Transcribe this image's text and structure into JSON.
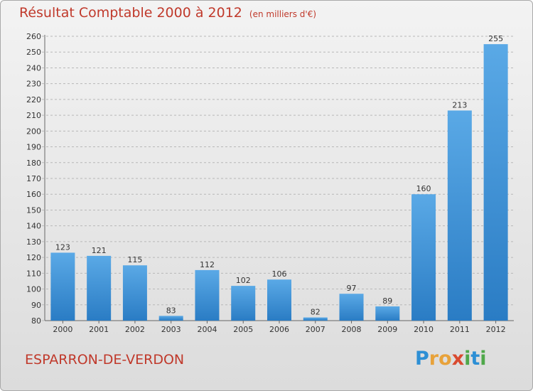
{
  "title": "Résultat Comptable 2000 à 2012",
  "subtitle": "(en milliers d'€)",
  "location": "ESPARRON-DE-VERDON",
  "logo": {
    "letters": [
      "P",
      "r",
      "o",
      "x",
      "i",
      "t",
      "i"
    ],
    "colors": [
      "#2d8fd5",
      "#e8a23a",
      "#e8a23a",
      "#d94a2f",
      "#4fa84a",
      "#2d8fd5",
      "#4fa84a"
    ]
  },
  "colors": {
    "bar_light": "#5aa9e6",
    "bar_dark": "#2a7cc4",
    "title": "#c0392b",
    "grid": "#b8b8b8"
  },
  "chart_data": {
    "type": "bar",
    "categories": [
      "2000",
      "2001",
      "2002",
      "2003",
      "2004",
      "2005",
      "2006",
      "2007",
      "2008",
      "2009",
      "2010",
      "2011",
      "2012"
    ],
    "values": [
      123,
      121,
      115,
      83,
      112,
      102,
      106,
      82,
      97,
      89,
      160,
      213,
      255
    ],
    "value_labels": [
      "123",
      "121",
      "115",
      "83",
      "112",
      "102",
      "106",
      "82",
      "97",
      "89",
      "160",
      "213",
      "255"
    ],
    "yticks": [
      "80",
      "90",
      "100",
      "110",
      "120",
      "130",
      "140",
      "150",
      "160",
      "170",
      "180",
      "190",
      "200",
      "210",
      "220",
      "230",
      "240",
      "250",
      "260"
    ],
    "ylim": [
      80,
      260
    ],
    "grid": true
  }
}
